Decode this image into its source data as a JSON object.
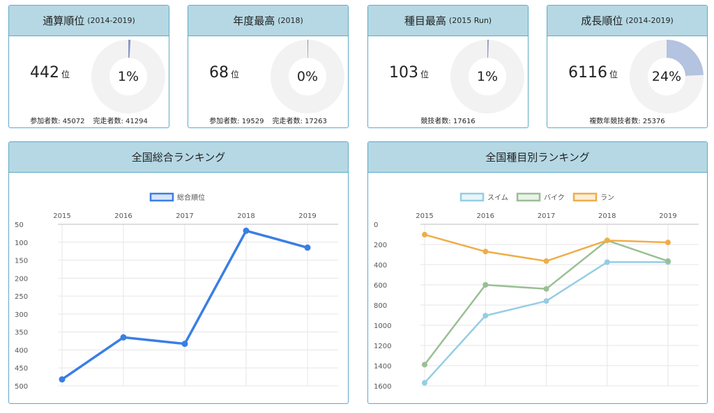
{
  "cards": [
    {
      "title": "通算順位",
      "sub": "(2014-2019)",
      "rank": "442",
      "unit": "位",
      "percent": "1%",
      "fraction": 0.0098,
      "footer": [
        "参加者数: 45072",
        "完走者数: 41294"
      ]
    },
    {
      "title": "年度最高",
      "sub": "(2018)",
      "rank": "68",
      "unit": "位",
      "percent": "0%",
      "fraction": 0.0035,
      "footer": [
        "参加者数: 19529",
        "完走者数: 17263"
      ]
    },
    {
      "title": "種目最高",
      "sub": "(2015 Run)",
      "rank": "103",
      "unit": "位",
      "percent": "1%",
      "fraction": 0.0058,
      "footer": [
        "競技者数: 17616"
      ]
    },
    {
      "title": "成長順位",
      "sub": "(2014-2019)",
      "rank": "6116",
      "unit": "位",
      "percent": "24%",
      "fraction": 0.243,
      "footer": [
        "複数年競技者数: 25376"
      ]
    }
  ],
  "colors": {
    "accent": "#3a7ee4",
    "swim": "#95cde4",
    "bike": "#99bf94",
    "run": "#f0ad48",
    "donut_bg": "#f2f2f2",
    "donut_fill_small": "#8a95c8",
    "donut_fill_growth": "#b3c3e0"
  },
  "chart_data": [
    {
      "type": "line",
      "title": "全国総合ランキング",
      "categories": [
        "2015",
        "2016",
        "2017",
        "2018",
        "2019"
      ],
      "series": [
        {
          "name": "総合順位",
          "values": [
            482,
            365,
            383,
            68,
            115
          ]
        }
      ],
      "ylim": [
        50,
        500
      ],
      "yticks": [
        50,
        100,
        150,
        200,
        250,
        300,
        350,
        400,
        450,
        500
      ],
      "y_reversed": true,
      "legend": "top",
      "grid": true
    },
    {
      "type": "line",
      "title": "全国種目別ランキング",
      "categories": [
        "2015",
        "2016",
        "2017",
        "2018",
        "2019"
      ],
      "series": [
        {
          "name": "スイム",
          "values": [
            1570,
            905,
            760,
            375,
            375
          ]
        },
        {
          "name": "バイク",
          "values": [
            1390,
            600,
            640,
            160,
            365
          ]
        },
        {
          "name": "ラン",
          "values": [
            103,
            270,
            365,
            160,
            180
          ]
        }
      ],
      "ylim": [
        0,
        1600
      ],
      "yticks": [
        0,
        200,
        400,
        600,
        800,
        1000,
        1200,
        1400,
        1600
      ],
      "y_reversed": true,
      "legend": "top",
      "grid": true
    }
  ]
}
